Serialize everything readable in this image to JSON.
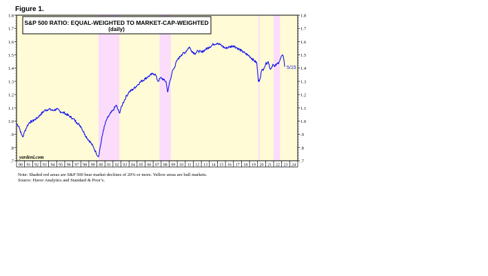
{
  "figure_label": "Figure 1.",
  "chart_data": {
    "type": "line",
    "title": "S&P 500 RATIO: EQUAL-WEIGHTED TO MARKET-CAP-WEIGHTED",
    "subtitle": "(daily)",
    "watermark": "yardeni.com",
    "end_label": "5/15",
    "xlabel": "",
    "ylabel": "",
    "xlim": [
      1990,
      2025
    ],
    "ylim": [
      0.7,
      1.8
    ],
    "y_ticks": [
      0.7,
      0.8,
      0.9,
      1.0,
      1.1,
      1.2,
      1.3,
      1.4,
      1.5,
      1.6,
      1.7,
      1.8
    ],
    "y_tick_labels": [
      ".7",
      ".8",
      ".9",
      "1.0",
      "1.1",
      "1.2",
      "1.3",
      "1.4",
      "1.5",
      "1.6",
      "1.7",
      "1.8"
    ],
    "x_tick_labels": [
      "90",
      "91",
      "92",
      "93",
      "94",
      "95",
      "96",
      "97",
      "98",
      "99",
      "00",
      "01",
      "02",
      "03",
      "04",
      "05",
      "06",
      "07",
      "08",
      "09",
      "10",
      "11",
      "12",
      "13",
      "14",
      "15",
      "16",
      "17",
      "18",
      "19",
      "20",
      "21",
      "22",
      "23",
      "24",
      "25"
    ],
    "grid": false,
    "background_color": "#fffde0",
    "line_color": "#1010ee",
    "bull_market_color": "#fffbd6",
    "bear_market_color": "#fbdcfb",
    "regions": [
      {
        "type": "bear",
        "start": 2000.2,
        "end": 2002.8
      },
      {
        "type": "bear",
        "start": 2007.8,
        "end": 2009.2
      },
      {
        "type": "bear",
        "start": 2020.1,
        "end": 2020.25
      },
      {
        "type": "bear",
        "start": 2022.0,
        "end": 2022.8
      }
    ],
    "series": [
      {
        "name": "",
        "x": [
          1990.0,
          1990.3,
          1990.6,
          1990.8,
          1991.0,
          1991.3,
          1991.6,
          1992.0,
          1992.5,
          1993.0,
          1993.5,
          1994.0,
          1994.5,
          1995.0,
          1995.5,
          1996.0,
          1996.5,
          1997.0,
          1997.5,
          1998.0,
          1998.5,
          1998.8,
          1999.2,
          1999.6,
          1999.9,
          2000.2,
          2000.4,
          2000.8,
          2001.2,
          2001.6,
          2002.0,
          2002.4,
          2002.8,
          2003.2,
          2003.6,
          2004.0,
          2004.5,
          2005.0,
          2005.5,
          2006.0,
          2006.5,
          2007.0,
          2007.3,
          2007.6,
          2008.0,
          2008.3,
          2008.6,
          2008.8,
          2009.0,
          2009.2,
          2009.4,
          2009.6,
          2010.0,
          2010.5,
          2011.0,
          2011.5,
          2011.8,
          2012.2,
          2012.6,
          2013.0,
          2013.5,
          2014.0,
          2014.5,
          2015.0,
          2015.5,
          2016.0,
          2016.5,
          2017.0,
          2017.5,
          2018.0,
          2018.5,
          2019.0,
          2019.5,
          2019.9,
          2020.1,
          2020.25,
          2020.5,
          2020.8,
          2021.0,
          2021.3,
          2021.6,
          2021.9,
          2022.1,
          2022.4,
          2022.7,
          2022.9,
          2023.1,
          2023.25,
          2023.37
        ],
        "values": [
          0.98,
          0.96,
          0.9,
          0.88,
          0.92,
          0.96,
          0.99,
          1.0,
          1.02,
          1.05,
          1.08,
          1.09,
          1.08,
          1.09,
          1.07,
          1.06,
          1.04,
          1.02,
          0.99,
          0.96,
          0.9,
          0.87,
          0.84,
          0.8,
          0.76,
          0.73,
          0.8,
          0.93,
          1.01,
          1.05,
          1.08,
          1.12,
          1.06,
          1.13,
          1.18,
          1.22,
          1.24,
          1.27,
          1.3,
          1.32,
          1.34,
          1.36,
          1.35,
          1.3,
          1.33,
          1.31,
          1.3,
          1.22,
          1.28,
          1.32,
          1.38,
          1.4,
          1.46,
          1.5,
          1.52,
          1.56,
          1.53,
          1.51,
          1.53,
          1.52,
          1.54,
          1.56,
          1.58,
          1.59,
          1.57,
          1.55,
          1.56,
          1.57,
          1.55,
          1.53,
          1.51,
          1.49,
          1.46,
          1.44,
          1.3,
          1.31,
          1.38,
          1.4,
          1.43,
          1.45,
          1.39,
          1.43,
          1.41,
          1.43,
          1.45,
          1.48,
          1.5,
          1.47,
          1.41
        ]
      }
    ]
  },
  "notes": [
    "Note: Shaded red areas are S&P 500 bear market declines of 20% or more. Yellow areas are bull markets.",
    "Source: Haver Analytics and Standard & Poor’s."
  ]
}
